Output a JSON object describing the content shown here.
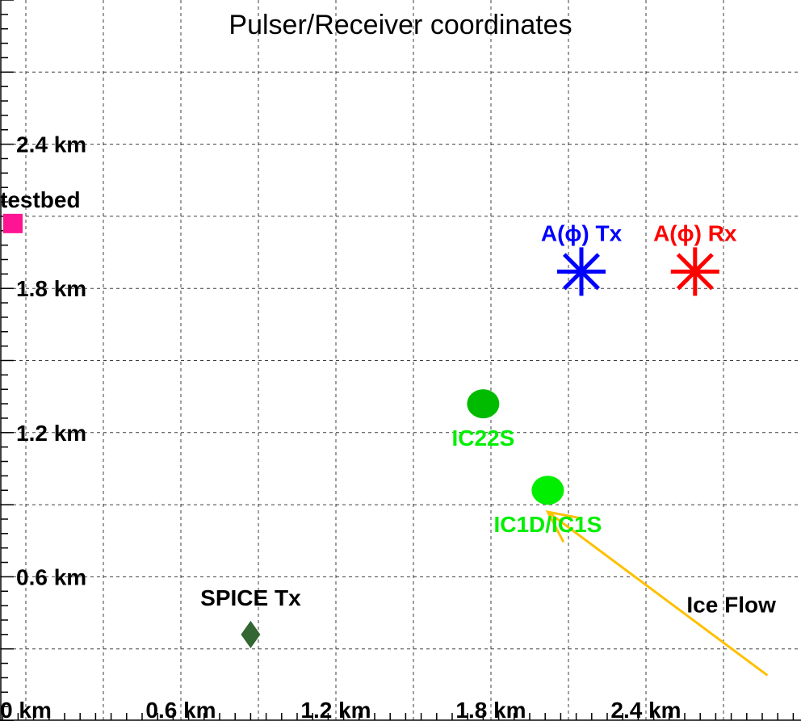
{
  "chart_data": {
    "type": "scatter",
    "title": "Pulser/Receiver coordinates",
    "xlim": [
      -0.1,
      3.0
    ],
    "ylim": [
      0.0,
      3.0
    ],
    "grid": true,
    "x_ticks": [
      {
        "value": 0.0,
        "label": "0 km"
      },
      {
        "value": 0.6,
        "label": "0.6 km"
      },
      {
        "value": 1.2,
        "label": "1.2 km"
      },
      {
        "value": 1.8,
        "label": "1.8 km"
      },
      {
        "value": 2.4,
        "label": "2.4 km"
      }
    ],
    "y_ticks": [
      {
        "value": 0.6,
        "label": "0.6 km"
      },
      {
        "value": 1.2,
        "label": "1.2 km"
      },
      {
        "value": 1.8,
        "label": "1.8 km"
      },
      {
        "value": 2.4,
        "label": "2.4 km"
      }
    ],
    "points": [
      {
        "name": "testbed",
        "x": -0.05,
        "y": 2.07,
        "marker": "square",
        "color": "#ff1493",
        "label_color": "#000000"
      },
      {
        "name": "A(ϕ) Tx",
        "x": 2.15,
        "y": 1.87,
        "marker": "asterisk",
        "color": "#0000ff",
        "label_color": "#0000ff"
      },
      {
        "name": "A(ϕ) Rx",
        "x": 2.59,
        "y": 1.87,
        "marker": "asterisk",
        "color": "#ff0000",
        "label_color": "#ff0000"
      },
      {
        "name": "IC22S",
        "x": 1.77,
        "y": 1.32,
        "marker": "circle",
        "color": "#00bb00",
        "label_color": "#00ee00"
      },
      {
        "name": "IC1D/IC1S",
        "x": 2.02,
        "y": 0.96,
        "marker": "circle",
        "color": "#00ee00",
        "label_color": "#00ee00"
      },
      {
        "name": "SPICE Tx",
        "x": 0.87,
        "y": 0.36,
        "marker": "diamond",
        "color": "#336633",
        "label_color": "#000000"
      }
    ],
    "annotations": [
      {
        "text": "Ice Flow",
        "color": "#000000",
        "arrow_color": "#ffc000",
        "from": [
          2.87,
          0.19
        ],
        "to": [
          2.02,
          0.87
        ]
      }
    ]
  }
}
